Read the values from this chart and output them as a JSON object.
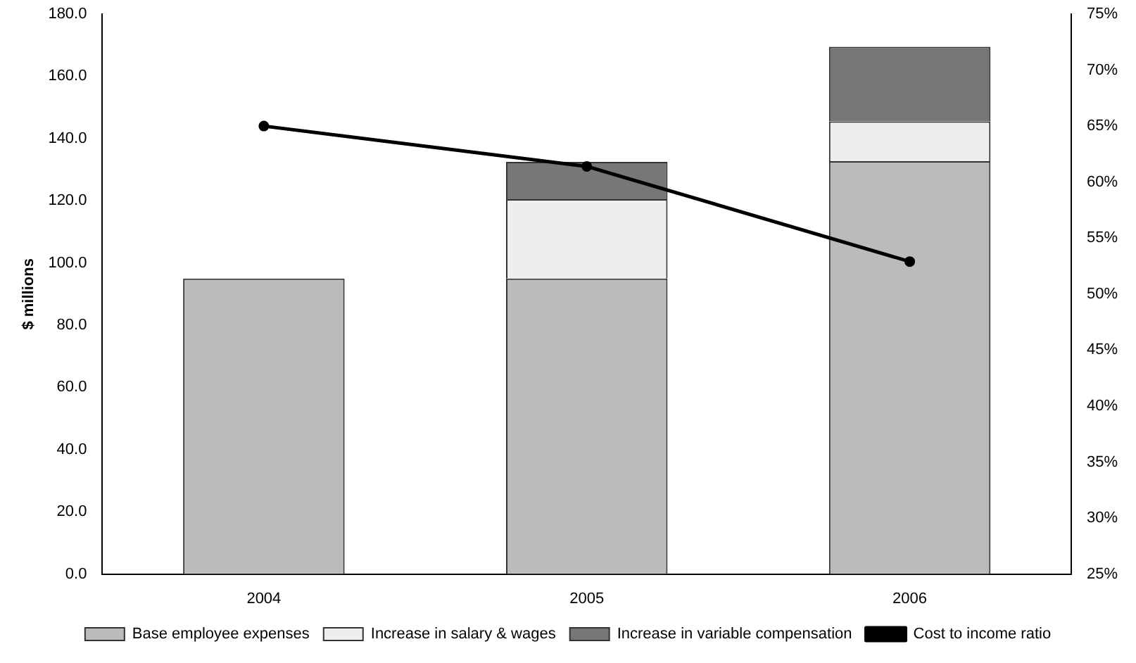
{
  "chart_data": {
    "type": "bar",
    "stacked": true,
    "categories": [
      "2004",
      "2005",
      "2006"
    ],
    "ylabel": "$ millions",
    "series": [
      {
        "name": "Base employee expenses",
        "color": "#bbbbbb",
        "values": [
          95,
          95,
          132.7
        ]
      },
      {
        "name": "Increase in salary & wages",
        "color": "#eeeeee",
        "values": [
          0,
          25.5,
          12.8
        ]
      },
      {
        "name": "Increase in variable compensation",
        "color": "#777777",
        "values": [
          0,
          12,
          24
        ]
      },
      {
        "name": "Cost to income ratio",
        "type": "line",
        "axis": "y2",
        "color": "#000000",
        "values": [
          65.0,
          61.4,
          52.9
        ]
      }
    ],
    "ylim": [
      0,
      180
    ],
    "yticks": [
      {
        "value": 0,
        "label": "0.0"
      },
      {
        "value": 20,
        "label": "20.0"
      },
      {
        "value": 40,
        "label": "40.0"
      },
      {
        "value": 60,
        "label": "60.0"
      },
      {
        "value": 80,
        "label": "80.0"
      },
      {
        "value": 100,
        "label": "100.0"
      },
      {
        "value": 120,
        "label": "120.0"
      },
      {
        "value": 140,
        "label": "140.0"
      },
      {
        "value": 160,
        "label": "160.0"
      },
      {
        "value": 180,
        "label": "180.0"
      }
    ],
    "y2lim": [
      25,
      75
    ],
    "y2ticks": [
      {
        "value": 25,
        "label": "25%"
      },
      {
        "value": 30,
        "label": "30%"
      },
      {
        "value": 35,
        "label": "35%"
      },
      {
        "value": 40,
        "label": "40%"
      },
      {
        "value": 45,
        "label": "45%"
      },
      {
        "value": 50,
        "label": "50%"
      },
      {
        "value": 55,
        "label": "55%"
      },
      {
        "value": 60,
        "label": "60%"
      },
      {
        "value": 65,
        "label": "65%"
      },
      {
        "value": 70,
        "label": "70%"
      },
      {
        "value": 75,
        "label": "75%"
      }
    ],
    "legend": "bottom",
    "marker": "circle",
    "grid": false
  }
}
